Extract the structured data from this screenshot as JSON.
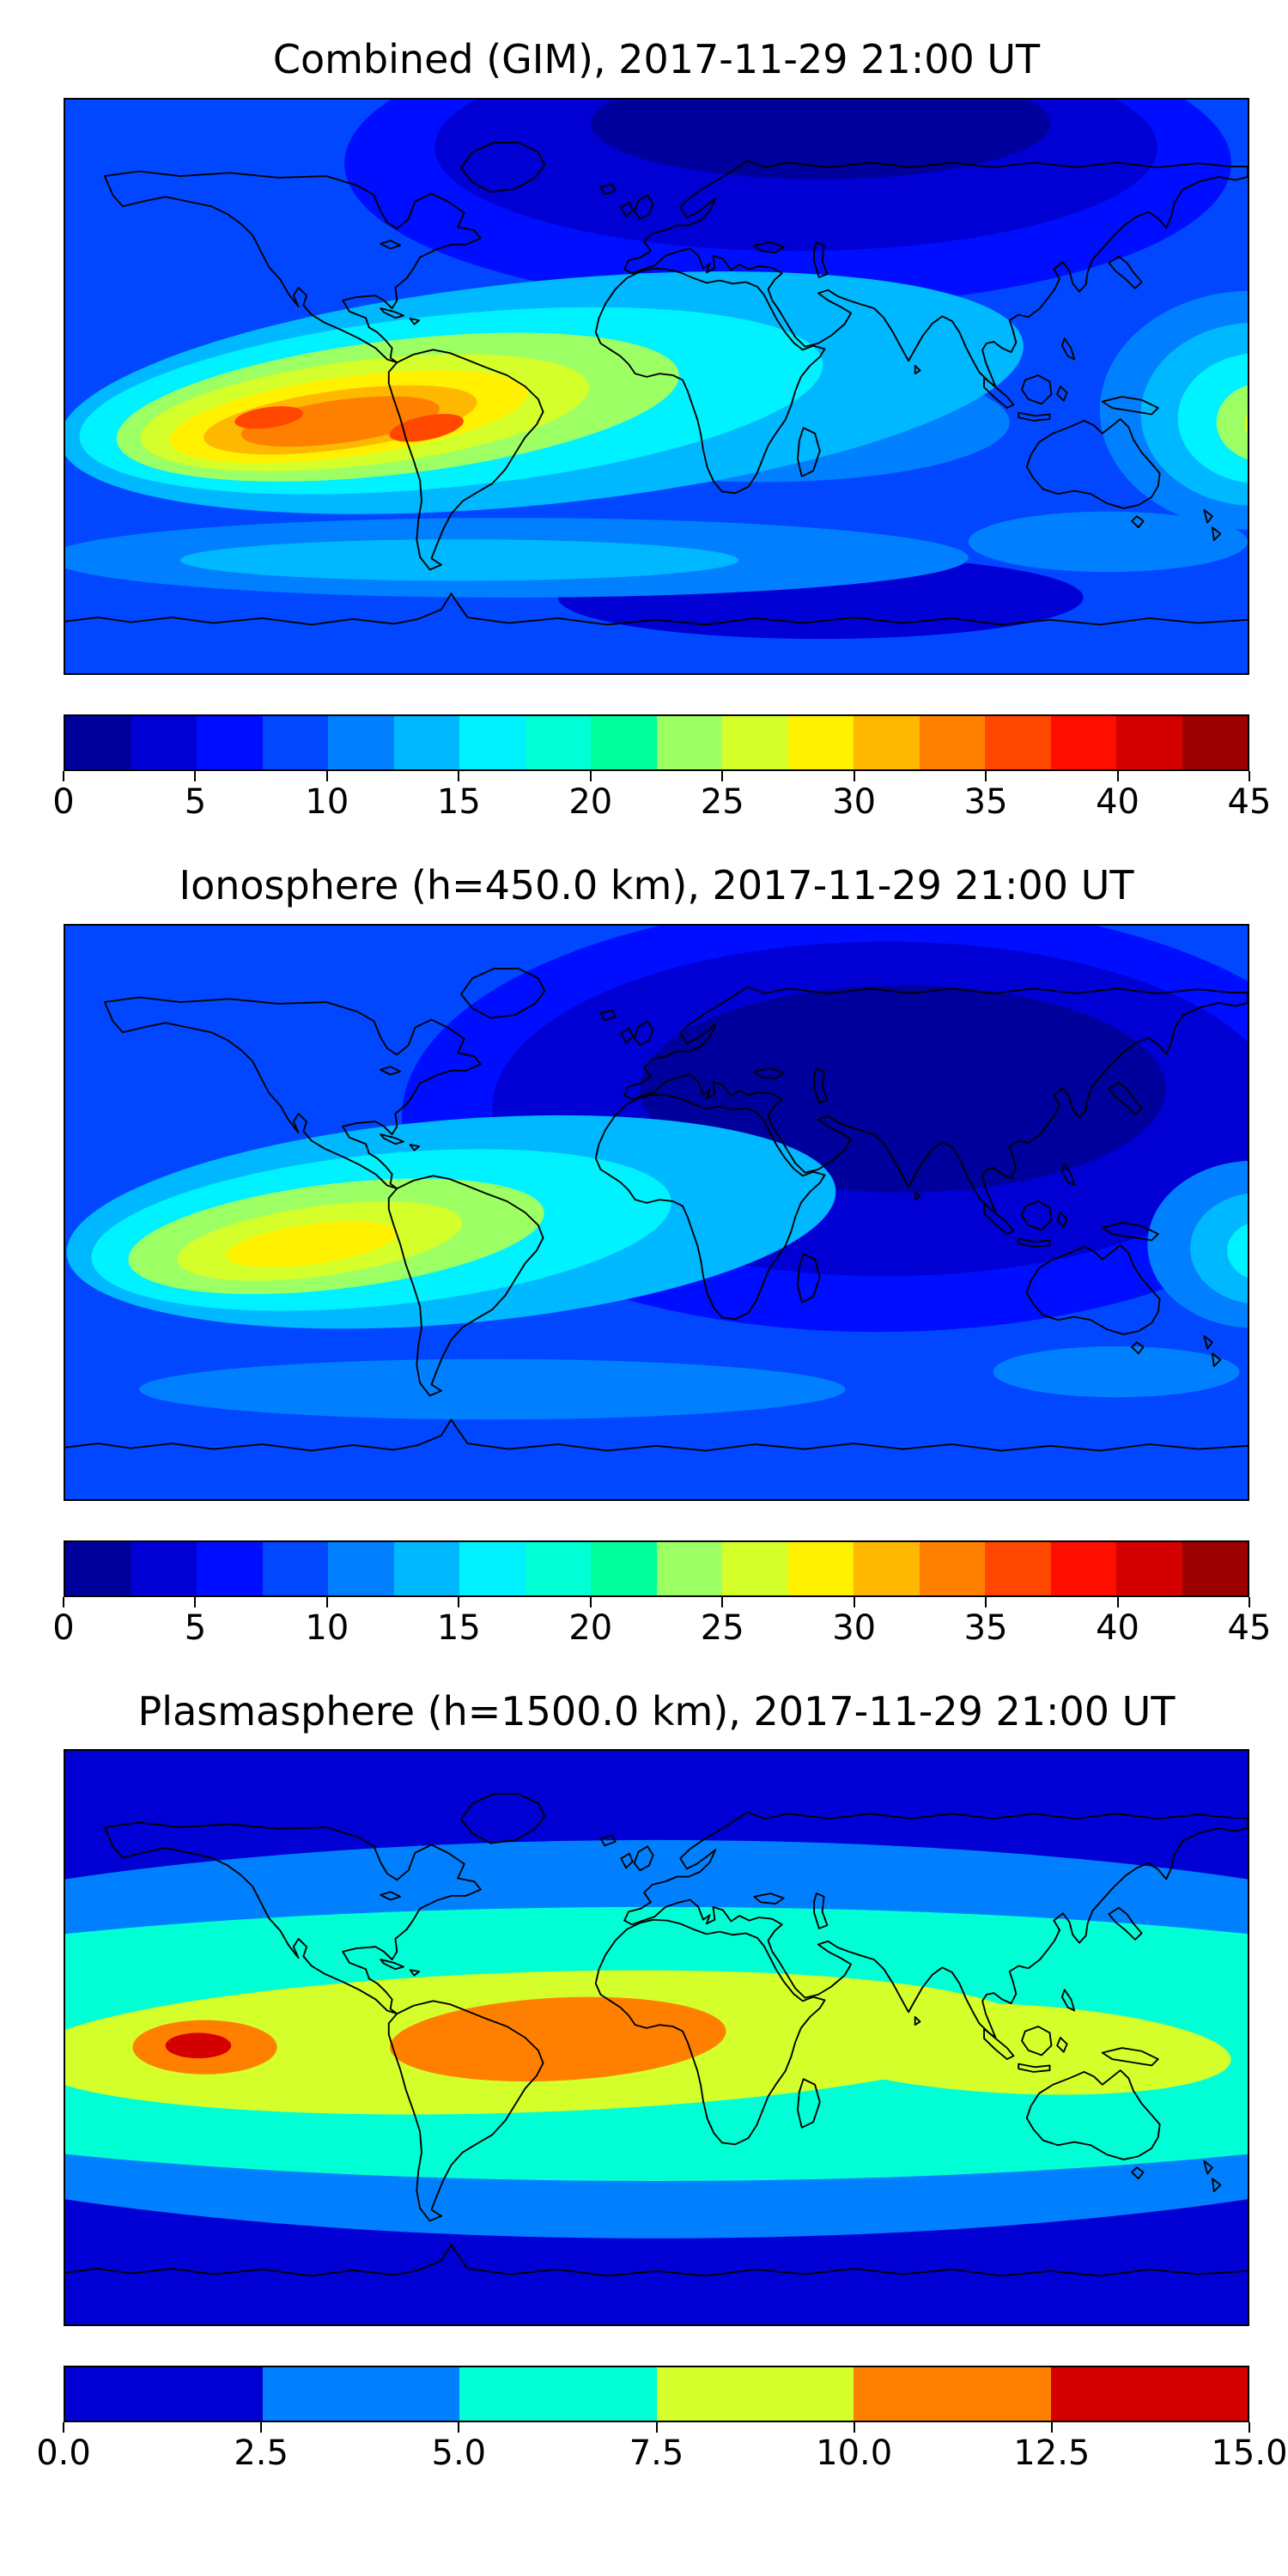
{
  "panels": [
    {
      "id": "combined",
      "title": "Combined (GIM), 2017-11-29 21:00 UT",
      "colorbar": {
        "min": 0,
        "max": 45,
        "ticks": [
          "0",
          "5",
          "10",
          "15",
          "20",
          "25",
          "30",
          "35",
          "40",
          "45"
        ],
        "segment_colors": [
          "#00009C",
          "#0000D4",
          "#000EFF",
          "#0047FF",
          "#0080FF",
          "#00B8FF",
          "#00F1FF",
          "#00FFD4",
          "#00FF9C",
          "#9CFF63",
          "#D4FF2B",
          "#FFF100",
          "#FFB800",
          "#FF8000",
          "#FF4700",
          "#FF0E00",
          "#D40000",
          "#9C0000"
        ]
      }
    },
    {
      "id": "ionosphere",
      "title": "Ionosphere  (h=450.0 km), 2017-11-29 21:00 UT",
      "colorbar": {
        "min": 0,
        "max": 45,
        "ticks": [
          "0",
          "5",
          "10",
          "15",
          "20",
          "25",
          "30",
          "35",
          "40",
          "45"
        ],
        "segment_colors": [
          "#00009C",
          "#0000D4",
          "#000EFF",
          "#0047FF",
          "#0080FF",
          "#00B8FF",
          "#00F1FF",
          "#00FFD4",
          "#00FF9C",
          "#9CFF63",
          "#D4FF2B",
          "#FFF100",
          "#FFB800",
          "#FF8000",
          "#FF4700",
          "#FF0E00",
          "#D40000",
          "#9C0000"
        ]
      }
    },
    {
      "id": "plasmasphere",
      "title": "Plasmasphere (h=1500.0 km), 2017-11-29 21:00 UT",
      "colorbar": {
        "min": 0,
        "max": 15,
        "ticks": [
          "0.0",
          "2.5",
          "5.0",
          "7.5",
          "10.0",
          "12.5",
          "15.0"
        ],
        "segment_colors": [
          "#0000D4",
          "#0080FF",
          "#00FFD4",
          "#D4FF2B",
          "#FF8000",
          "#D40000"
        ]
      }
    }
  ],
  "chart_data": [
    {
      "type": "heatmap",
      "title": "Combined (GIM), 2017-11-29 21:00 UT",
      "projection": "equirectangular",
      "lon_range": [
        -180,
        180
      ],
      "lat_range": [
        -90,
        90
      ],
      "colormap": "jet",
      "value_range": [
        0,
        45
      ],
      "contour_interval": 2.5,
      "colorbar_ticks": [
        0,
        5,
        10,
        15,
        20,
        25,
        30,
        35,
        40,
        45
      ],
      "legend_position": "bottom",
      "features": [
        {
          "label": "equatorial ionization anomaly maximum, eastern Pacific",
          "lon": -98,
          "lat": -11,
          "value": 42
        },
        {
          "label": "secondary maximum over South America west coast",
          "lon": -69,
          "lat": -13,
          "value": 40
        },
        {
          "label": "yellow enhancement band",
          "lon_from": -156,
          "lon_to": -32,
          "lat": -12,
          "value": 30
        },
        {
          "label": "western Pacific enhancement at map edge",
          "lon": 180,
          "lat": -11,
          "value": 25
        },
        {
          "label": "nightside minimum over northern Eurasia",
          "lon": 50,
          "lat": 72,
          "value": 2
        },
        {
          "label": "southern mid-latitude background",
          "lon": 0,
          "lat": -50,
          "value": 8
        }
      ]
    },
    {
      "type": "heatmap",
      "title": "Ionosphere  (h=450.0 km), 2017-11-29 21:00 UT",
      "projection": "equirectangular",
      "lon_range": [
        -180,
        180
      ],
      "lat_range": [
        -90,
        90
      ],
      "colormap": "jet",
      "value_range": [
        0,
        45
      ],
      "contour_interval": 2.5,
      "colorbar_ticks": [
        0,
        5,
        10,
        15,
        20,
        25,
        30,
        35,
        40,
        45
      ],
      "legend_position": "bottom",
      "features": [
        {
          "label": "anomaly maximum off Peru coast",
          "lon": -105,
          "lat": -10,
          "value": 30
        },
        {
          "label": "dark nightside minimum over Africa and Asia",
          "lon": 70,
          "lat": 35,
          "value": 2
        },
        {
          "label": "western Pacific edge enhancement",
          "lon": 180,
          "lat": -12,
          "value": 18
        },
        {
          "label": "ocean background",
          "lon": -40,
          "lat": -50,
          "value": 7
        }
      ]
    },
    {
      "type": "heatmap",
      "title": "Plasmasphere (h=1500.0 km), 2017-11-29 21:00 UT",
      "projection": "equirectangular",
      "lon_range": [
        -180,
        180
      ],
      "lat_range": [
        -90,
        90
      ],
      "colormap": "jet",
      "value_range": [
        0,
        15
      ],
      "contour_interval": 2.5,
      "colorbar_ticks": [
        0,
        2.5,
        5,
        7.5,
        10,
        12.5,
        15
      ],
      "legend_position": "bottom",
      "features": [
        {
          "label": "plasmaspheric maximum (red core), eastern Pacific",
          "lon": -140,
          "lat": -3,
          "value": 14
        },
        {
          "label": "orange belt over Atlantic and Africa",
          "lon": -30,
          "lat": 0,
          "value": 11
        },
        {
          "label": "yellow-green equatorial belt",
          "lat_from": -22,
          "lat_to": 22,
          "value": 8.5
        },
        {
          "label": "turquoise band extent",
          "lat_from": -38,
          "lat_to": 40,
          "value": 6
        },
        {
          "label": "polar minimum",
          "lat": 75,
          "value": 1.5
        }
      ]
    }
  ]
}
